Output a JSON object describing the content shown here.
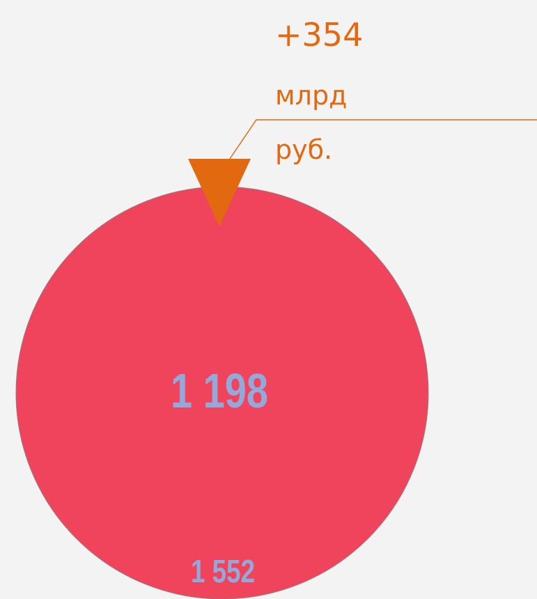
{
  "annotation": {
    "change": "+354",
    "unit_lines": [
      "млрд",
      "руб."
    ]
  },
  "labels": {
    "inner": "1 198",
    "outer": "1 552"
  }
}
